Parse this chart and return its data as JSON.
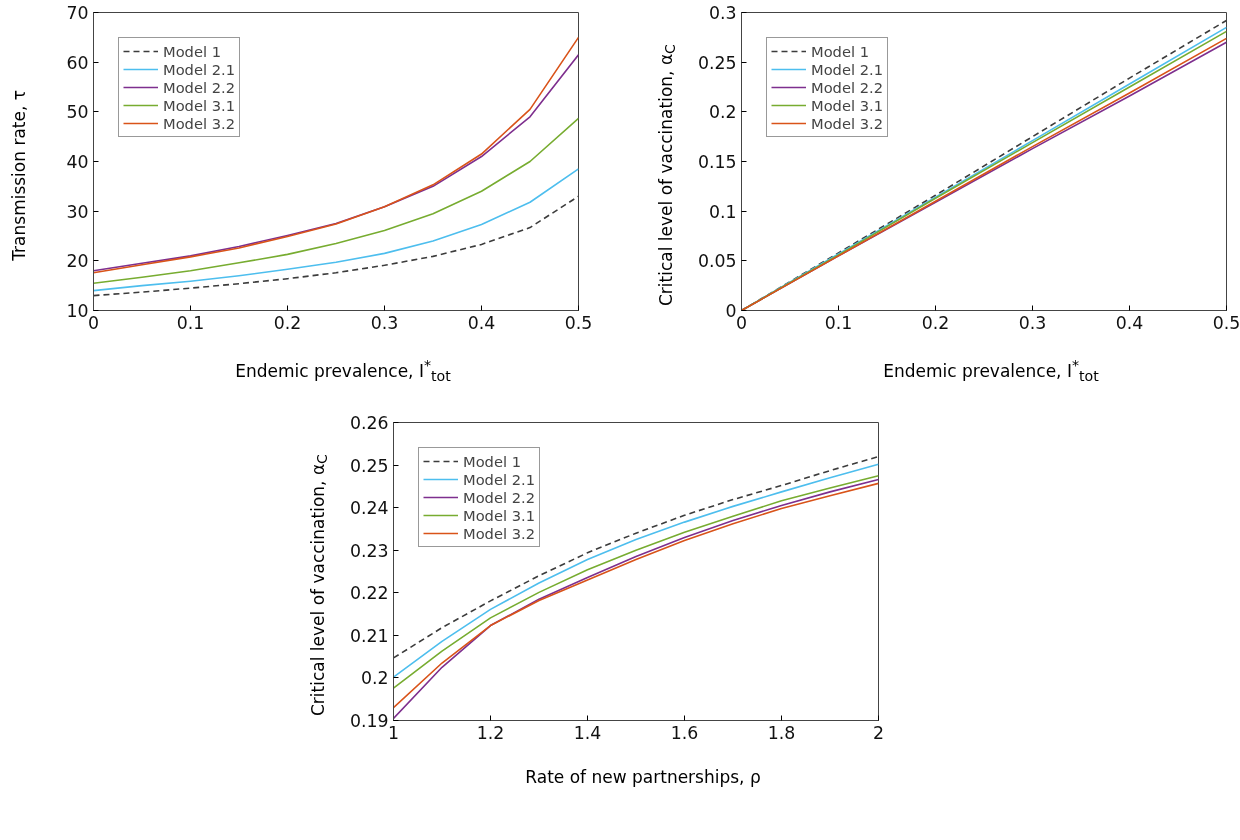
{
  "chart_data": [
    {
      "type": "line",
      "xlabel": "Endemic prevalence, I$^{*}$$_{tot}$",
      "ylabel": "Transmission rate, τ",
      "x": [
        0,
        0.05,
        0.1,
        0.15,
        0.2,
        0.25,
        0.3,
        0.35,
        0.4,
        0.45,
        0.5
      ],
      "xlim": [
        0,
        0.5
      ],
      "xticks": [
        0,
        0.1,
        0.2,
        0.3,
        0.4,
        0.5
      ],
      "ylim": [
        10,
        70
      ],
      "yticks": [
        10,
        20,
        30,
        40,
        50,
        60,
        70
      ],
      "grid": false,
      "legend": "top left",
      "series": [
        {
          "name": "Model 1",
          "color": "#3c3c3c",
          "line_style": "dashed",
          "values": [
            13,
            13.7,
            14.5,
            15.4,
            16.4,
            17.6,
            19.1,
            20.9,
            23.3,
            26.7,
            33
          ]
        },
        {
          "name": "Model 2.1",
          "color": "#4dbeee",
          "values": [
            14,
            15,
            15.9,
            17,
            18.3,
            19.7,
            21.5,
            24,
            27.3,
            31.8,
            38.5
          ]
        },
        {
          "name": "Model 2.2",
          "color": "#7e2f8e",
          "values": [
            18,
            19.5,
            21,
            22.9,
            25.1,
            27.5,
            30.9,
            35,
            41,
            49,
            61.5
          ]
        },
        {
          "name": "Model 3.1",
          "color": "#77ac30",
          "values": [
            15.5,
            16.7,
            18,
            19.6,
            21.3,
            23.5,
            26.1,
            29.5,
            34,
            40,
            48.7
          ]
        },
        {
          "name": "Model 3.2",
          "color": "#d95319",
          "values": [
            17.6,
            19.2,
            20.8,
            22.6,
            24.9,
            27.4,
            30.9,
            35.3,
            41.5,
            50.5,
            65
          ]
        }
      ]
    },
    {
      "type": "line",
      "xlabel": "Endemic prevalence, I$^{*}$$_{tot}$",
      "ylabel": "Critical level of vaccination, α$_{C}$",
      "x": [
        0,
        0.1,
        0.2,
        0.3,
        0.4,
        0.5
      ],
      "xlim": [
        0,
        0.5
      ],
      "xticks": [
        0,
        0.1,
        0.2,
        0.3,
        0.4,
        0.5
      ],
      "ylim": [
        0,
        0.3
      ],
      "yticks": [
        0,
        0.05,
        0.1,
        0.15,
        0.2,
        0.25,
        0.3
      ],
      "grid": false,
      "legend": "top left",
      "series": [
        {
          "name": "Model 1",
          "color": "#3c3c3c",
          "line_style": "dashed",
          "values": [
            0,
            0.058,
            0.116,
            0.175,
            0.234,
            0.292
          ]
        },
        {
          "name": "Model 2.1",
          "color": "#4dbeee",
          "values": [
            0,
            0.057,
            0.114,
            0.171,
            0.228,
            0.285
          ]
        },
        {
          "name": "Model 2.2",
          "color": "#7e2f8e",
          "values": [
            0,
            0.055,
            0.109,
            0.163,
            0.216,
            0.27
          ]
        },
        {
          "name": "Model 3.1",
          "color": "#77ac30",
          "values": [
            0,
            0.056,
            0.113,
            0.169,
            0.225,
            0.281
          ]
        },
        {
          "name": "Model 3.2",
          "color": "#d95319",
          "values": [
            0,
            0.055,
            0.11,
            0.165,
            0.219,
            0.274
          ]
        }
      ]
    },
    {
      "type": "line",
      "xlabel": "Rate of new partnerships, ρ",
      "ylabel": "Critical level of vaccination, α$_{C}$",
      "x": [
        1,
        1.1,
        1.2,
        1.3,
        1.4,
        1.5,
        1.6,
        1.7,
        1.8,
        1.9,
        2
      ],
      "xlim": [
        1,
        2
      ],
      "xticks": [
        1,
        1.2,
        1.4,
        1.6,
        1.8,
        2
      ],
      "ylim": [
        0.19,
        0.26
      ],
      "yticks": [
        0.19,
        0.2,
        0.21,
        0.22,
        0.23,
        0.24,
        0.25,
        0.26
      ],
      "grid": false,
      "legend": "top left",
      "series": [
        {
          "name": "Model 1",
          "color": "#3c3c3c",
          "line_style": "dashed",
          "values": [
            0.2047,
            0.2118,
            0.2181,
            0.224,
            0.2294,
            0.234,
            0.2382,
            0.2419,
            0.2452,
            0.2487,
            0.252
          ]
        },
        {
          "name": "Model 2.1",
          "color": "#4dbeee",
          "values": [
            0.2002,
            0.2086,
            0.2161,
            0.2223,
            0.2278,
            0.2325,
            0.2366,
            0.2403,
            0.2437,
            0.247,
            0.2502
          ]
        },
        {
          "name": "Model 2.2",
          "color": "#7e2f8e",
          "values": [
            0.1905,
            0.2025,
            0.2123,
            0.2185,
            0.2236,
            0.2285,
            0.233,
            0.237,
            0.2405,
            0.2437,
            0.2466
          ]
        },
        {
          "name": "Model 3.1",
          "color": "#77ac30",
          "values": [
            0.1976,
            0.2063,
            0.2141,
            0.2201,
            0.2254,
            0.23,
            0.2342,
            0.238,
            0.2416,
            0.2446,
            0.2475
          ]
        },
        {
          "name": "Model 3.2",
          "color": "#d95319",
          "values": [
            0.193,
            0.2035,
            0.2123,
            0.2182,
            0.223,
            0.2278,
            0.2323,
            0.2362,
            0.2398,
            0.2428,
            0.2457
          ]
        }
      ]
    }
  ]
}
